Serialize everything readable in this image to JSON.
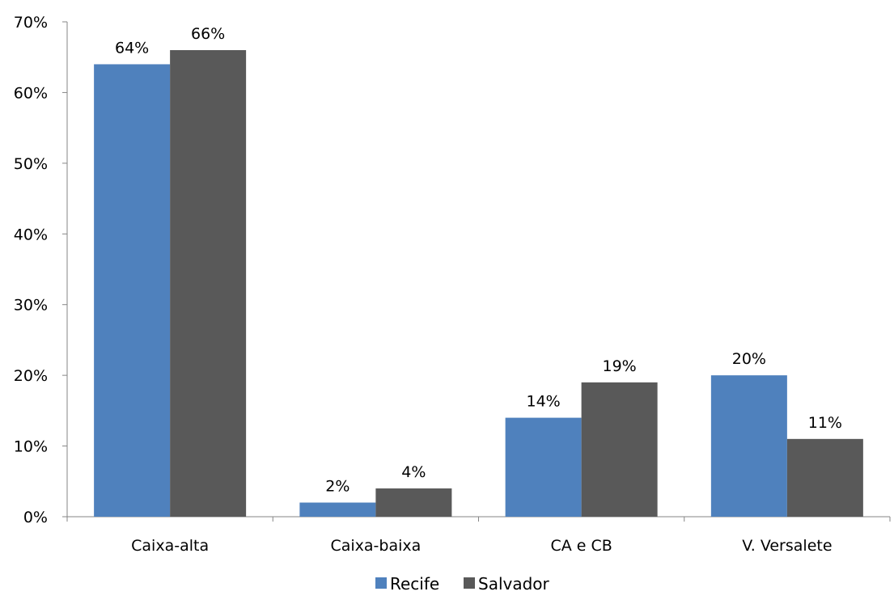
{
  "chart_data": {
    "type": "bar",
    "title": "",
    "xlabel": "",
    "ylabel": "",
    "categories": [
      "Caixa-alta",
      "Caixa-baixa",
      "CA e CB",
      "V. Versalete"
    ],
    "series": [
      {
        "name": "Recife",
        "color": "#4f81bd",
        "values": [
          64,
          2,
          14,
          20
        ],
        "labels": [
          "64%",
          "2%",
          "14%",
          "20%"
        ]
      },
      {
        "name": "Salvador",
        "color": "#595959",
        "values": [
          66,
          4,
          19,
          11
        ],
        "labels": [
          "66%",
          "4%",
          "19%",
          "11%"
        ]
      }
    ],
    "ylim": [
      0,
      70
    ],
    "yticks": [
      0,
      10,
      20,
      30,
      40,
      50,
      60,
      70
    ],
    "ytick_labels": [
      "0%",
      "10%",
      "20%",
      "30%",
      "40%",
      "50%",
      "60%",
      "70%"
    ],
    "grid": false,
    "legend_position": "bottom"
  }
}
